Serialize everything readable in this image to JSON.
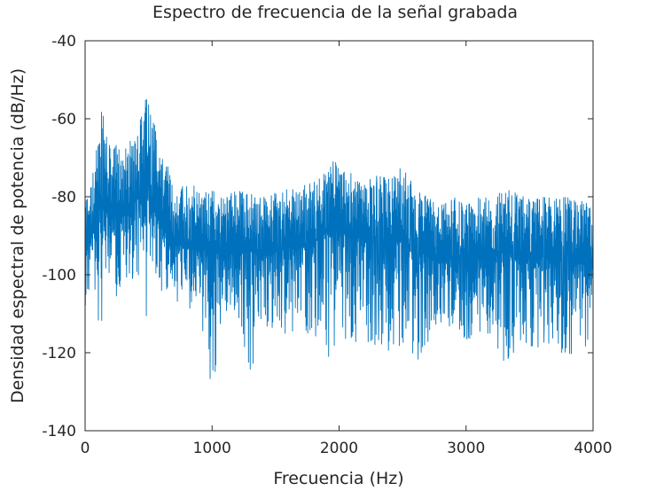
{
  "chart_data": {
    "type": "line",
    "title": "Espectro de frecuencia de la señal grabada",
    "xlabel": "Frecuencia (Hz)",
    "ylabel": "Densidad espectral de potencia (dB/Hz)",
    "xlim": [
      0,
      4000
    ],
    "ylim": [
      -140,
      -40
    ],
    "x_ticks": [
      0,
      1000,
      2000,
      3000,
      4000
    ],
    "x_tick_labels": [
      "0",
      "1000",
      "2000",
      "3000",
      "4000"
    ],
    "y_ticks": [
      -140,
      -120,
      -100,
      -80,
      -60,
      -40
    ],
    "y_tick_labels": [
      "-140",
      "-120",
      "-100",
      "-80",
      "-60",
      "-40"
    ],
    "grid": false,
    "line_color": "#0072BD",
    "series": [
      {
        "x": [
          0,
          50,
          100,
          120,
          150,
          200,
          250,
          300,
          350,
          400,
          450,
          480,
          500,
          550,
          600,
          650,
          700,
          800,
          900,
          1000,
          1100,
          1200,
          1300,
          1400,
          1500,
          1600,
          1700,
          1800,
          1900,
          1950,
          2000,
          2100,
          2200,
          2300,
          2400,
          2500,
          2600,
          2700,
          2800,
          2900,
          3000,
          3100,
          3200,
          3300,
          3400,
          3500,
          3600,
          3700,
          3800,
          3900,
          4000
        ],
        "y_upper": [
          -80,
          -76,
          -65,
          -52,
          -60,
          -68,
          -66,
          -70,
          -64,
          -60,
          -58,
          -54,
          -56,
          -62,
          -70,
          -72,
          -78,
          -76,
          -78,
          -78,
          -80,
          -78,
          -79,
          -80,
          -79,
          -78,
          -77,
          -76,
          -73,
          -70,
          -72,
          -74,
          -76,
          -74,
          -75,
          -72,
          -78,
          -80,
          -82,
          -80,
          -82,
          -80,
          -80,
          -78,
          -79,
          -80,
          -79,
          -80,
          -80,
          -81,
          -82
        ],
        "y_lower": [
          -108,
          -106,
          -110,
          -119,
          -104,
          -102,
          -106,
          -106,
          -100,
          -104,
          -112,
          -116,
          -110,
          -102,
          -107,
          -105,
          -106,
          -112,
          -110,
          -132,
          -112,
          -110,
          -129,
          -113,
          -114,
          -116,
          -113,
          -117,
          -121,
          -123,
          -118,
          -117,
          -118,
          -118,
          -120,
          -118,
          -124,
          -118,
          -113,
          -115,
          -118,
          -116,
          -115,
          -127,
          -118,
          -120,
          -118,
          -120,
          -120,
          -122,
          -114
        ],
        "y_center": [
          -93,
          -90,
          -88,
          -80,
          -83,
          -86,
          -85,
          -85,
          -82,
          -80,
          -82,
          -78,
          -80,
          -84,
          -88,
          -89,
          -92,
          -93,
          -94,
          -93,
          -95,
          -94,
          -94,
          -95,
          -94,
          -93,
          -93,
          -92,
          -89,
          -88,
          -89,
          -90,
          -91,
          -91,
          -92,
          -91,
          -94,
          -95,
          -97,
          -96,
          -97,
          -96,
          -96,
          -94,
          -95,
          -96,
          -95,
          -96,
          -96,
          -97,
          -97
        ]
      }
    ]
  }
}
